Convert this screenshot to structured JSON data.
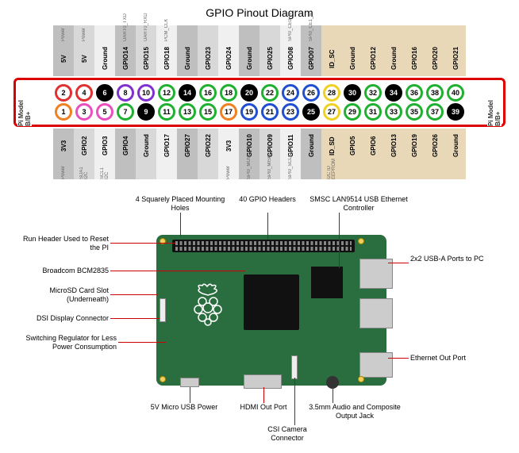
{
  "title": "GPIO Pinout Diagram",
  "model_label": "Pi Model B/B+",
  "colors": {
    "red": "#e03030",
    "pink": "#e850c0",
    "black": "#000000",
    "blue": "#2050d0",
    "purple": "#8030d0",
    "green": "#20b030",
    "orange": "#f08020",
    "yellow": "#f0d020"
  },
  "col_bg": {
    "gray_light": "#f0f0f0",
    "gray_mid": "#d8d8d8",
    "gray_dark": "#bfbfbf",
    "tan": "#e8d8b8"
  },
  "top_labels": [
    {
      "t": "5V",
      "s": "Power"
    },
    {
      "t": "5V",
      "s": "Power"
    },
    {
      "t": "Ground",
      "s": ""
    },
    {
      "t": "GPIO14",
      "s": "UART0_TXD"
    },
    {
      "t": "GPIO15",
      "s": "UART0_RXD"
    },
    {
      "t": "GPIO18",
      "s": "PCM_CLK"
    },
    {
      "t": "Ground",
      "s": ""
    },
    {
      "t": "GPIO23",
      "s": ""
    },
    {
      "t": "GPIO24",
      "s": ""
    },
    {
      "t": "Ground",
      "s": ""
    },
    {
      "t": "GPIO25",
      "s": ""
    },
    {
      "t": "GPIO08",
      "s": "SPI0_CE0_N"
    },
    {
      "t": "GPIO07",
      "s": "SPI0_CE1_N"
    },
    {
      "t": "ID_SC",
      "s": ""
    },
    {
      "t": "Ground",
      "s": ""
    },
    {
      "t": "GPIO12",
      "s": ""
    },
    {
      "t": "Ground",
      "s": ""
    },
    {
      "t": "GPIO16",
      "s": ""
    },
    {
      "t": "GPIO20",
      "s": ""
    },
    {
      "t": "GPIO21",
      "s": ""
    }
  ],
  "bottom_labels": [
    {
      "t": "3V3",
      "s": "Power"
    },
    {
      "t": "GPIO2",
      "s": "SDA1 I2C"
    },
    {
      "t": "GPIO3",
      "s": "SCL1 I2C"
    },
    {
      "t": "GPIO4",
      "s": ""
    },
    {
      "t": "Ground",
      "s": ""
    },
    {
      "t": "GPIO17",
      "s": ""
    },
    {
      "t": "GPIO27",
      "s": ""
    },
    {
      "t": "GPIO22",
      "s": ""
    },
    {
      "t": "3V3",
      "s": "Power"
    },
    {
      "t": "GPIO10",
      "s": "SPI0_MOSI"
    },
    {
      "t": "GPIO09",
      "s": "SPI0_MISO"
    },
    {
      "t": "GPIO11",
      "s": "SPI0_SCLK"
    },
    {
      "t": "Ground",
      "s": ""
    },
    {
      "t": "ID_SD",
      "s": "I2C ID EEPROM"
    },
    {
      "t": "GPIO5",
      "s": ""
    },
    {
      "t": "GPIO6",
      "s": ""
    },
    {
      "t": "GPIO13",
      "s": ""
    },
    {
      "t": "GPIO19",
      "s": ""
    },
    {
      "t": "GPIO26",
      "s": ""
    },
    {
      "t": "Ground",
      "s": ""
    }
  ],
  "top_pins": [
    {
      "n": 2,
      "c": "red"
    },
    {
      "n": 4,
      "c": "red"
    },
    {
      "n": 6,
      "c": "black",
      "f": 1
    },
    {
      "n": 8,
      "c": "purple"
    },
    {
      "n": 10,
      "c": "purple"
    },
    {
      "n": 12,
      "c": "green"
    },
    {
      "n": 14,
      "c": "black",
      "f": 1
    },
    {
      "n": 16,
      "c": "green"
    },
    {
      "n": 18,
      "c": "green"
    },
    {
      "n": 20,
      "c": "black",
      "f": 1
    },
    {
      "n": 22,
      "c": "green"
    },
    {
      "n": 24,
      "c": "blue"
    },
    {
      "n": 26,
      "c": "blue"
    },
    {
      "n": 28,
      "c": "yellow"
    },
    {
      "n": 30,
      "c": "black",
      "f": 1
    },
    {
      "n": 32,
      "c": "green"
    },
    {
      "n": 34,
      "c": "black",
      "f": 1
    },
    {
      "n": 36,
      "c": "green"
    },
    {
      "n": 38,
      "c": "green"
    },
    {
      "n": 40,
      "c": "green"
    }
  ],
  "bottom_pins": [
    {
      "n": 1,
      "c": "orange"
    },
    {
      "n": 3,
      "c": "pink"
    },
    {
      "n": 5,
      "c": "pink"
    },
    {
      "n": 7,
      "c": "green"
    },
    {
      "n": 9,
      "c": "black",
      "f": 1
    },
    {
      "n": 11,
      "c": "green"
    },
    {
      "n": 13,
      "c": "green"
    },
    {
      "n": 15,
      "c": "green"
    },
    {
      "n": 17,
      "c": "orange"
    },
    {
      "n": 19,
      "c": "blue"
    },
    {
      "n": 21,
      "c": "blue"
    },
    {
      "n": 23,
      "c": "blue"
    },
    {
      "n": 25,
      "c": "black",
      "f": 1
    },
    {
      "n": 27,
      "c": "yellow"
    },
    {
      "n": 29,
      "c": "green"
    },
    {
      "n": 31,
      "c": "green"
    },
    {
      "n": 33,
      "c": "green"
    },
    {
      "n": 35,
      "c": "green"
    },
    {
      "n": 37,
      "c": "green"
    },
    {
      "n": 39,
      "c": "black",
      "f": 1
    }
  ],
  "col_shades": [
    "gray_dark",
    "gray_mid",
    "gray_light",
    "gray_dark",
    "gray_mid",
    "gray_light",
    "gray_dark",
    "gray_mid",
    "gray_light",
    "gray_dark",
    "gray_mid",
    "gray_light",
    "gray_dark",
    "tan",
    "tan",
    "tan",
    "tan",
    "tan",
    "tan",
    "tan"
  ],
  "callouts": {
    "mounting": "4 Squarely Placed\nMounting Holes",
    "gpio_hdr": "40 GPIO\nHeaders",
    "smsc": "SMSC LAN9514 USB\nEthernet Controller",
    "run": "Run Header Used\nto Reset the PI",
    "bcm": "Broadcom BCM2835",
    "microsd": "MicroSD Card Slot\n(Underneath)",
    "dsi": "DSI Display Connector",
    "regulator": "Switching Regulator for\nLess Power Consumption",
    "usb": "2x2 USB-A\nPorts to PC",
    "eth": "Ethernet Out Port",
    "usb5v": "5V Micro USB\nPower",
    "hdmi": "HDMI Out Port",
    "csi": "CSI Camera\nConnector",
    "audio": "3.5mm Audio and\nComposite Output Jack"
  }
}
